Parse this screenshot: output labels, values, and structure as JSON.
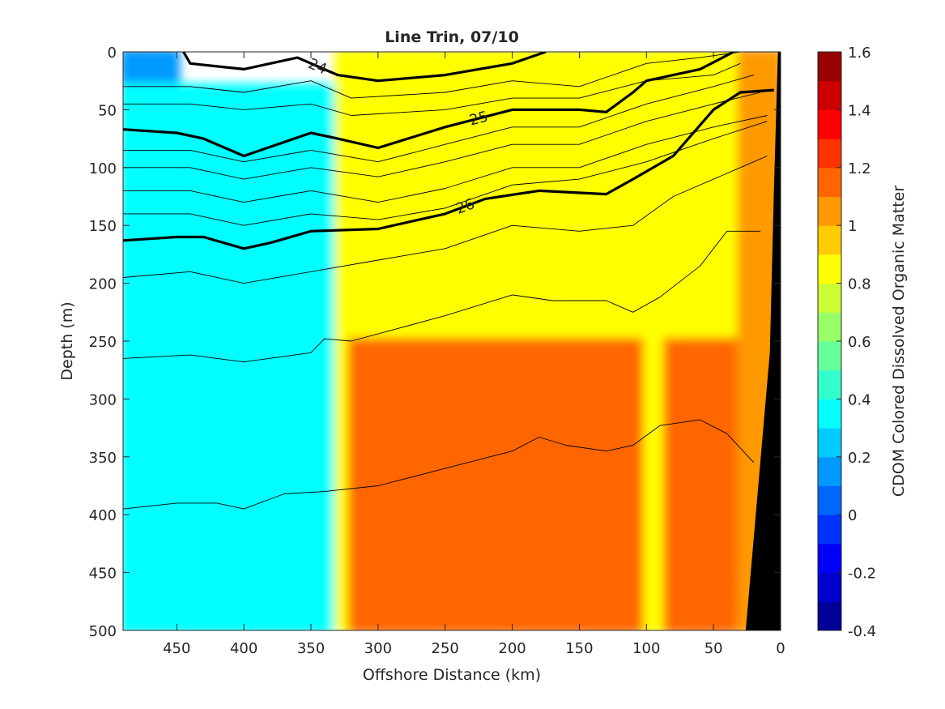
{
  "chart_data": {
    "type": "contour",
    "title": "Line Trin, 07/10",
    "xlabel": "Offshore Distance (km)",
    "ylabel": "Depth (m)",
    "x_reversed": true,
    "y_reversed": true,
    "xlim": [
      490,
      0
    ],
    "ylim": [
      0,
      500
    ],
    "xticks": [
      "450",
      "400",
      "350",
      "300",
      "250",
      "200",
      "150",
      "100",
      "50",
      "0"
    ],
    "yticks": [
      "0",
      "50",
      "100",
      "150",
      "200",
      "250",
      "300",
      "350",
      "400",
      "450",
      "500"
    ],
    "colorbar": {
      "label": "CDOM Colored Dissolved Organic Matter",
      "min": -0.4,
      "max": 1.6,
      "step": 0.1,
      "ticks": [
        "1.6",
        "1.4",
        "1.2",
        "1",
        "0.8",
        "0.6",
        "0.4",
        "0.2",
        "0",
        "-0.2",
        "-0.4"
      ],
      "colormap": "jet"
    },
    "field_regions": [
      {
        "x": [
          490,
          450
        ],
        "depth": [
          0,
          30
        ],
        "value": 0.1
      },
      {
        "x": [
          490,
          330
        ],
        "depth": [
          30,
          500
        ],
        "value": 0.35
      },
      {
        "x": [
          330,
          320
        ],
        "depth": [
          0,
          500
        ],
        "value": 0.8
      },
      {
        "x": [
          320,
          30
        ],
        "depth": [
          0,
          250
        ],
        "value": 0.8
      },
      {
        "x": [
          320,
          100
        ],
        "depth": [
          250,
          500
        ],
        "value": 1.15
      },
      {
        "x": [
          100,
          85
        ],
        "depth": [
          0,
          500
        ],
        "value": 0.85
      },
      {
        "x": [
          85,
          30
        ],
        "depth": [
          250,
          500
        ],
        "value": 1.1
      },
      {
        "x": [
          30,
          0
        ],
        "depth": [
          0,
          500
        ],
        "value": 1.05
      }
    ],
    "isopycnals": [
      {
        "label": "24",
        "bold": true,
        "points": [
          [
            445,
            0
          ],
          [
            440,
            10
          ],
          [
            400,
            15
          ],
          [
            360,
            5
          ],
          [
            330,
            20
          ],
          [
            300,
            25
          ],
          [
            250,
            20
          ],
          [
            200,
            10
          ],
          [
            175,
            0
          ]
        ]
      },
      {
        "label": "25",
        "bold": true,
        "points": [
          [
            490,
            67
          ],
          [
            450,
            70
          ],
          [
            430,
            75
          ],
          [
            400,
            90
          ],
          [
            350,
            70
          ],
          [
            330,
            75
          ],
          [
            300,
            83
          ],
          [
            250,
            65
          ],
          [
            200,
            50
          ],
          [
            150,
            50
          ],
          [
            130,
            52
          ],
          [
            110,
            35
          ],
          [
            100,
            25
          ],
          [
            80,
            20
          ],
          [
            60,
            15
          ],
          [
            35,
            0
          ]
        ]
      },
      {
        "label": "26",
        "bold": true,
        "points": [
          [
            490,
            163
          ],
          [
            450,
            160
          ],
          [
            430,
            160
          ],
          [
            400,
            170
          ],
          [
            380,
            165
          ],
          [
            350,
            155
          ],
          [
            300,
            153
          ],
          [
            250,
            140
          ],
          [
            220,
            127
          ],
          [
            180,
            120
          ],
          [
            130,
            123
          ],
          [
            110,
            110
          ],
          [
            80,
            90
          ],
          [
            50,
            50
          ],
          [
            30,
            35
          ],
          [
            5,
            33
          ]
        ]
      },
      {
        "label": "",
        "bold": false,
        "points": [
          [
            490,
            30
          ],
          [
            440,
            30
          ],
          [
            400,
            35
          ],
          [
            350,
            25
          ],
          [
            320,
            40
          ],
          [
            250,
            35
          ],
          [
            200,
            25
          ],
          [
            150,
            30
          ],
          [
            100,
            10
          ],
          [
            60,
            5
          ],
          [
            30,
            0
          ]
        ]
      },
      {
        "label": "",
        "bold": false,
        "points": [
          [
            490,
            45
          ],
          [
            440,
            45
          ],
          [
            400,
            50
          ],
          [
            350,
            45
          ],
          [
            320,
            55
          ],
          [
            250,
            50
          ],
          [
            200,
            40
          ],
          [
            150,
            40
          ],
          [
            100,
            25
          ],
          [
            50,
            20
          ],
          [
            30,
            10
          ]
        ]
      },
      {
        "label": "",
        "bold": false,
        "points": [
          [
            490,
            85
          ],
          [
            440,
            85
          ],
          [
            400,
            95
          ],
          [
            350,
            85
          ],
          [
            300,
            95
          ],
          [
            250,
            80
          ],
          [
            200,
            65
          ],
          [
            150,
            65
          ],
          [
            100,
            45
          ],
          [
            50,
            30
          ],
          [
            20,
            20
          ]
        ]
      },
      {
        "label": "",
        "bold": false,
        "points": [
          [
            490,
            100
          ],
          [
            440,
            100
          ],
          [
            400,
            110
          ],
          [
            350,
            100
          ],
          [
            300,
            108
          ],
          [
            250,
            95
          ],
          [
            200,
            80
          ],
          [
            150,
            80
          ],
          [
            100,
            60
          ],
          [
            50,
            45
          ],
          [
            15,
            35
          ]
        ]
      },
      {
        "label": "",
        "bold": false,
        "points": [
          [
            490,
            120
          ],
          [
            440,
            120
          ],
          [
            400,
            130
          ],
          [
            350,
            120
          ],
          [
            300,
            130
          ],
          [
            250,
            118
          ],
          [
            200,
            100
          ],
          [
            150,
            100
          ],
          [
            100,
            80
          ],
          [
            50,
            65
          ],
          [
            10,
            55
          ]
        ]
      },
      {
        "label": "",
        "bold": false,
        "points": [
          [
            490,
            140
          ],
          [
            440,
            140
          ],
          [
            400,
            150
          ],
          [
            350,
            140
          ],
          [
            300,
            145
          ],
          [
            250,
            135
          ],
          [
            200,
            115
          ],
          [
            150,
            110
          ],
          [
            100,
            95
          ],
          [
            50,
            75
          ],
          [
            10,
            60
          ]
        ]
      },
      {
        "label": "",
        "bold": false,
        "points": [
          [
            490,
            195
          ],
          [
            440,
            190
          ],
          [
            400,
            200
          ],
          [
            350,
            190
          ],
          [
            300,
            180
          ],
          [
            250,
            170
          ],
          [
            200,
            150
          ],
          [
            150,
            155
          ],
          [
            110,
            150
          ],
          [
            80,
            125
          ],
          [
            30,
            100
          ],
          [
            10,
            90
          ]
        ]
      },
      {
        "label": "",
        "bold": false,
        "points": [
          [
            490,
            265
          ],
          [
            440,
            262
          ],
          [
            400,
            268
          ],
          [
            350,
            260
          ],
          [
            340,
            248
          ],
          [
            320,
            250
          ],
          [
            250,
            228
          ],
          [
            200,
            210
          ],
          [
            170,
            215
          ],
          [
            130,
            215
          ],
          [
            110,
            225
          ],
          [
            90,
            212
          ],
          [
            60,
            185
          ],
          [
            40,
            155
          ],
          [
            15,
            155
          ]
        ]
      },
      {
        "label": "",
        "bold": false,
        "points": [
          [
            490,
            395
          ],
          [
            450,
            390
          ],
          [
            420,
            390
          ],
          [
            400,
            395
          ],
          [
            370,
            382
          ],
          [
            340,
            380
          ],
          [
            300,
            375
          ],
          [
            250,
            360
          ],
          [
            200,
            345
          ],
          [
            180,
            333
          ],
          [
            160,
            340
          ],
          [
            130,
            345
          ],
          [
            110,
            340
          ],
          [
            90,
            323
          ],
          [
            60,
            318
          ],
          [
            40,
            330
          ],
          [
            20,
            355
          ]
        ]
      }
    ],
    "bathymetry": {
      "color": "#000000",
      "points": [
        [
          26,
          500
        ],
        [
          8,
          260
        ],
        [
          5,
          120
        ],
        [
          2,
          0
        ],
        [
          0,
          0
        ],
        [
          0,
          500
        ]
      ]
    }
  }
}
